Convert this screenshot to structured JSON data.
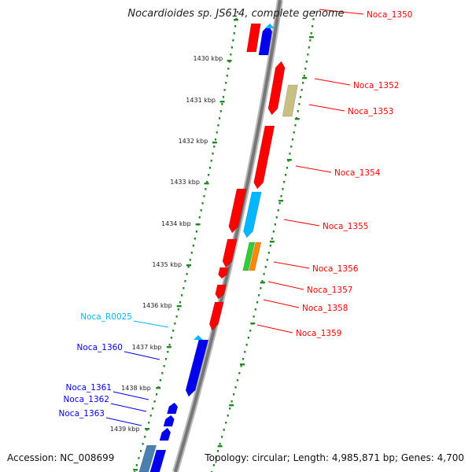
{
  "title": "Nocardioides sp. JS614, complete genome",
  "footer": {
    "accession": "Accession: NC_008699",
    "summary": "Topology: circular; Length: 4,985,871 bp; Genes: 4,700"
  },
  "colors": {
    "red": "#ff0000",
    "blue": "#0000ee",
    "cyan": "#00b8ff",
    "olive": "#c8c080",
    "green": "#33cc33",
    "orange": "#ff8800",
    "steel": "#4a7fb0",
    "backbone": "#888888",
    "tick": "#228822"
  },
  "ticks": [
    "1430 kbp",
    "1431 kbp",
    "1432 kbp",
    "1433 kbp",
    "1434 kbp",
    "1435 kbp",
    "1436 kbp",
    "1437 kbp",
    "1438 kbp",
    "1439 kbp"
  ],
  "labels": [
    {
      "text": "Noca_1350",
      "color": "red"
    },
    {
      "text": "Noca_1352",
      "color": "red"
    },
    {
      "text": "Noca_1353",
      "color": "red"
    },
    {
      "text": "Noca_1354",
      "color": "red"
    },
    {
      "text": "Noca_1355",
      "color": "red"
    },
    {
      "text": "Noca_1356",
      "color": "red"
    },
    {
      "text": "Noca_1357",
      "color": "red"
    },
    {
      "text": "Noca_1358",
      "color": "red"
    },
    {
      "text": "Noca_1359",
      "color": "red"
    },
    {
      "text": "Noca_R0025",
      "color": "cyan"
    },
    {
      "text": "Noca_1360",
      "color": "blue"
    },
    {
      "text": "Noca_1361",
      "color": "blue"
    },
    {
      "text": "Noca_1362",
      "color": "blue"
    },
    {
      "text": "Noca_1363",
      "color": "blue"
    }
  ]
}
